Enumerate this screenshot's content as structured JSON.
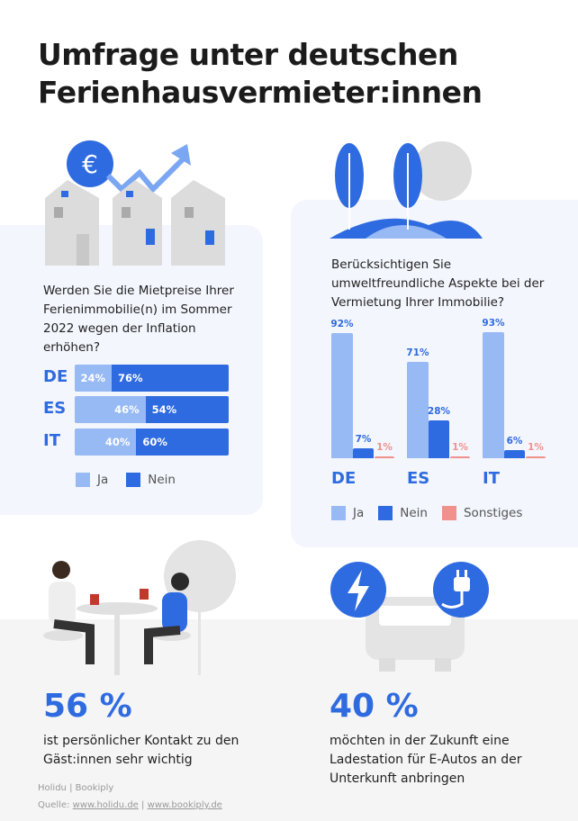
{
  "title_line1": "Umfrage unter deutschen",
  "title_line2": "Ferienhausvermieter:innen",
  "colors": {
    "ja": "#97b9f4",
    "nein": "#2f6be0",
    "sonstiges": "#f0918c"
  },
  "chart_data": [
    {
      "type": "bar",
      "orientation": "horizontal-stacked",
      "title": "Werden Sie die Mietpreise Ihrer Ferienimmobilie(n) im Sommer 2022 wegen der Inflation erhöhen?",
      "categories": [
        "DE",
        "ES",
        "IT"
      ],
      "series": [
        {
          "name": "Ja",
          "values": [
            24,
            46,
            40
          ],
          "labels": [
            "24%",
            "46%",
            "40%"
          ]
        },
        {
          "name": "Nein",
          "values": [
            76,
            54,
            60
          ],
          "labels": [
            "76%",
            "54%",
            "60%"
          ]
        }
      ],
      "legend": [
        "Ja",
        "Nein"
      ]
    },
    {
      "type": "bar",
      "title": "Berücksichtigen Sie umweltfreundliche Aspekte bei der Vermietung Ihrer Immobilie?",
      "categories": [
        "DE",
        "ES",
        "IT"
      ],
      "series": [
        {
          "name": "Ja",
          "values": [
            92,
            71,
            93
          ],
          "labels": [
            "92%",
            "71%",
            "93%"
          ]
        },
        {
          "name": "Nein",
          "values": [
            7,
            28,
            6
          ],
          "labels": [
            "7%",
            "28%",
            "6%"
          ]
        },
        {
          "name": "Sonstiges",
          "values": [
            1,
            1,
            1
          ],
          "labels": [
            "1%",
            "1%",
            "1%"
          ]
        }
      ],
      "legend": [
        "Ja",
        "Nein",
        "Sonstiges"
      ],
      "ylim": [
        0,
        100
      ]
    }
  ],
  "stat1": {
    "value": "56 %",
    "line1": "ist persönlicher Kontakt zu den",
    "line2": "Gäst:innen sehr wichtig"
  },
  "stat2": {
    "value": "40 %",
    "line1": "möchten in der Zukunft eine",
    "line2": "Ladestation für E-Autos an der",
    "line3": "Unterkunft anbringen"
  },
  "footer": {
    "brand1": "Holidu",
    "brand2": "Bookiply",
    "source_label": "Quelle:",
    "link1": "www.holidu.de",
    "link2": "www.bookiply.de",
    "sep": "|"
  },
  "icons": {
    "currency": "€"
  }
}
